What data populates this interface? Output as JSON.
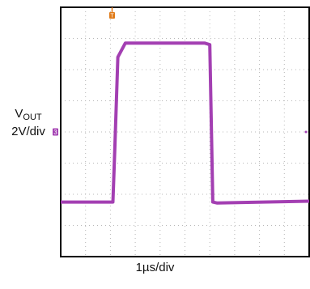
{
  "chart_data": {
    "type": "line",
    "title": "",
    "ylabel_main": "V",
    "ylabel_sub": "OUT",
    "ylabel_scale": "2V/div",
    "xlabel": "1µs/div",
    "grid": true,
    "grid_divisions": {
      "x": 10,
      "y": 8
    },
    "channel_marker": "3",
    "trigger_marker": "T",
    "xlim_div": [
      0,
      10
    ],
    "ylim_div": [
      0,
      8
    ],
    "series": [
      {
        "x_div": [
          0,
          2.1,
          2.18,
          2.3,
          2.6,
          5.8,
          6.0,
          6.12,
          6.3,
          10
        ],
        "y_div": [
          1.75,
          1.75,
          3.5,
          6.4,
          6.85,
          6.85,
          6.8,
          1.75,
          1.72,
          1.78
        ]
      }
    ],
    "colors": {
      "trace": "#a33fb2",
      "grid": "#b8b8b8",
      "frame": "#000000",
      "trigger": "#e07b1a",
      "channel": "#a33fb2"
    }
  }
}
